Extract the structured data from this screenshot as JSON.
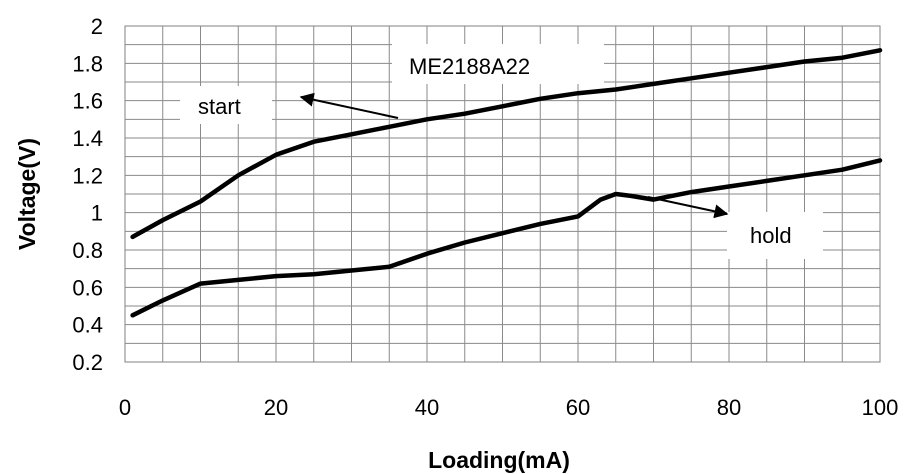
{
  "chart_data": {
    "type": "line",
    "title": "",
    "xlabel": "Loading(mA)",
    "ylabel": "Voltage(V)",
    "xlim": [
      0,
      100
    ],
    "ylim": [
      0.2,
      2
    ],
    "x_ticks": [
      "0",
      "20",
      "40",
      "60",
      "80",
      "100"
    ],
    "y_ticks": [
      "0.2",
      "0.4",
      "0.6",
      "0.8",
      "1",
      "1.2",
      "1.4",
      "1.6",
      "1.8",
      "2"
    ],
    "x_minor_step": 5,
    "y_minor_step": 0.1,
    "grid": true,
    "series": [
      {
        "name": "start",
        "color": "#000000",
        "x": [
          1,
          5,
          10,
          15,
          20,
          25,
          30,
          35,
          40,
          45,
          50,
          55,
          60,
          65,
          70,
          75,
          80,
          85,
          90,
          95,
          100
        ],
        "values": [
          0.87,
          0.96,
          1.06,
          1.2,
          1.31,
          1.38,
          1.42,
          1.46,
          1.5,
          1.53,
          1.57,
          1.61,
          1.64,
          1.66,
          1.69,
          1.72,
          1.75,
          1.78,
          1.81,
          1.83,
          1.87
        ]
      },
      {
        "name": "hold",
        "color": "#000000",
        "x": [
          1,
          5,
          10,
          15,
          20,
          25,
          30,
          35,
          40,
          45,
          50,
          55,
          60,
          63,
          65,
          67,
          70,
          75,
          80,
          85,
          90,
          95,
          100
        ],
        "values": [
          0.45,
          0.53,
          0.62,
          0.64,
          0.66,
          0.67,
          0.69,
          0.71,
          0.78,
          0.84,
          0.89,
          0.94,
          0.98,
          1.07,
          1.1,
          1.09,
          1.07,
          1.11,
          1.14,
          1.17,
          1.2,
          1.23,
          1.28
        ]
      }
    ],
    "annotations": [
      {
        "text": "ME2188A22",
        "kind": "label"
      },
      {
        "text": "start",
        "kind": "callout",
        "points_to": {
          "x": 24,
          "y": 1.64
        }
      },
      {
        "text": "hold",
        "kind": "callout",
        "points_to": {
          "x": 69,
          "y": 1.08
        }
      }
    ]
  }
}
